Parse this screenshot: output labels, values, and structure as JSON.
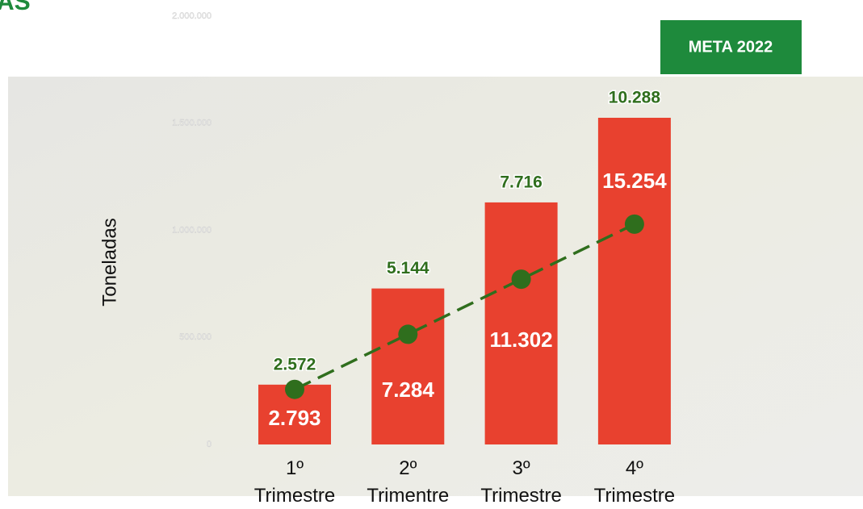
{
  "chart_data": {
    "type": "bar",
    "title": "AS",
    "y_label": "Toneladas",
    "categories": [
      "1º Trimestre",
      "2º Trimentre",
      "3º Trimestre",
      "4º Trimestre"
    ],
    "ylim": [
      0,
      20000
    ],
    "y2lim": [
      0,
      2000000
    ],
    "y2ticks": [
      0,
      {
        "value": 500000,
        "label": "500.000"
      },
      {
        "value": 1000000,
        "label": "1.000.000"
      },
      {
        "value": 1500000,
        "label": "1.500.000"
      },
      {
        "value": 2000000,
        "label": "2.000.000"
      }
    ],
    "series": [
      {
        "type": "bar",
        "color": "#e8412f",
        "values": [
          2793,
          7284,
          11302,
          15254
        ],
        "value_labels": [
          "2.793",
          "7.284",
          "11.302",
          "15.254"
        ]
      },
      {
        "type": "line",
        "name": "META 2022",
        "color": "#2f6e1d",
        "values": [
          2572,
          5144,
          7716,
          10288
        ],
        "value_labels": [
          "2.572",
          "5.144",
          "7.716",
          "10.288"
        ]
      }
    ]
  }
}
